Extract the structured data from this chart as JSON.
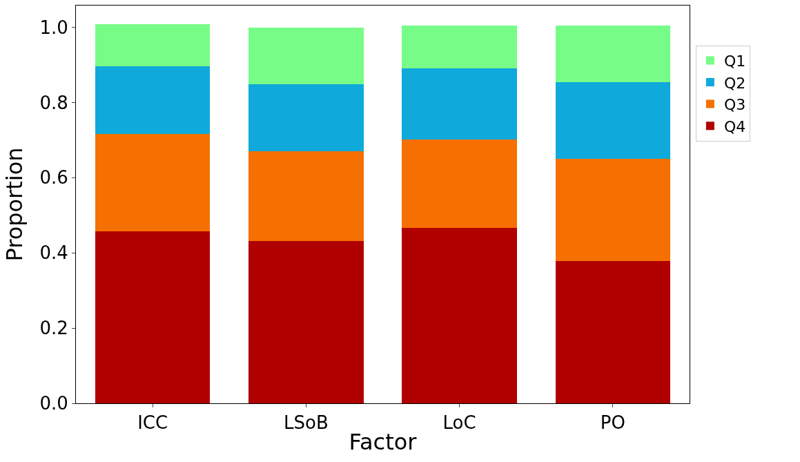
{
  "chart_data": {
    "type": "bar",
    "stacked": true,
    "xlabel": "Factor",
    "ylabel": "Proportion",
    "categories": [
      "ICC",
      "LSoB",
      "LoC",
      "PO"
    ],
    "series": [
      {
        "name": "Q4",
        "color": "#b00000",
        "values": [
          0.458,
          0.431,
          0.467,
          0.378
        ]
      },
      {
        "name": "Q3",
        "color": "#f57000",
        "values": [
          0.259,
          0.239,
          0.234,
          0.272
        ]
      },
      {
        "name": "Q2",
        "color": "#0fa9dc",
        "values": [
          0.179,
          0.179,
          0.19,
          0.204
        ]
      },
      {
        "name": "Q1",
        "color": "#77fc87",
        "values": [
          0.113,
          0.151,
          0.114,
          0.151
        ]
      }
    ],
    "ylim": [
      0,
      1.058
    ],
    "yticks": [
      {
        "value": 0,
        "label": "0.0"
      },
      {
        "value": 0.2,
        "label": "0.2"
      },
      {
        "value": 0.4,
        "label": "0.4"
      },
      {
        "value": 0.6,
        "label": "0.6"
      },
      {
        "value": 0.8,
        "label": "0.8"
      },
      {
        "value": 1.0,
        "label": "1.0"
      }
    ],
    "legend": "right"
  }
}
